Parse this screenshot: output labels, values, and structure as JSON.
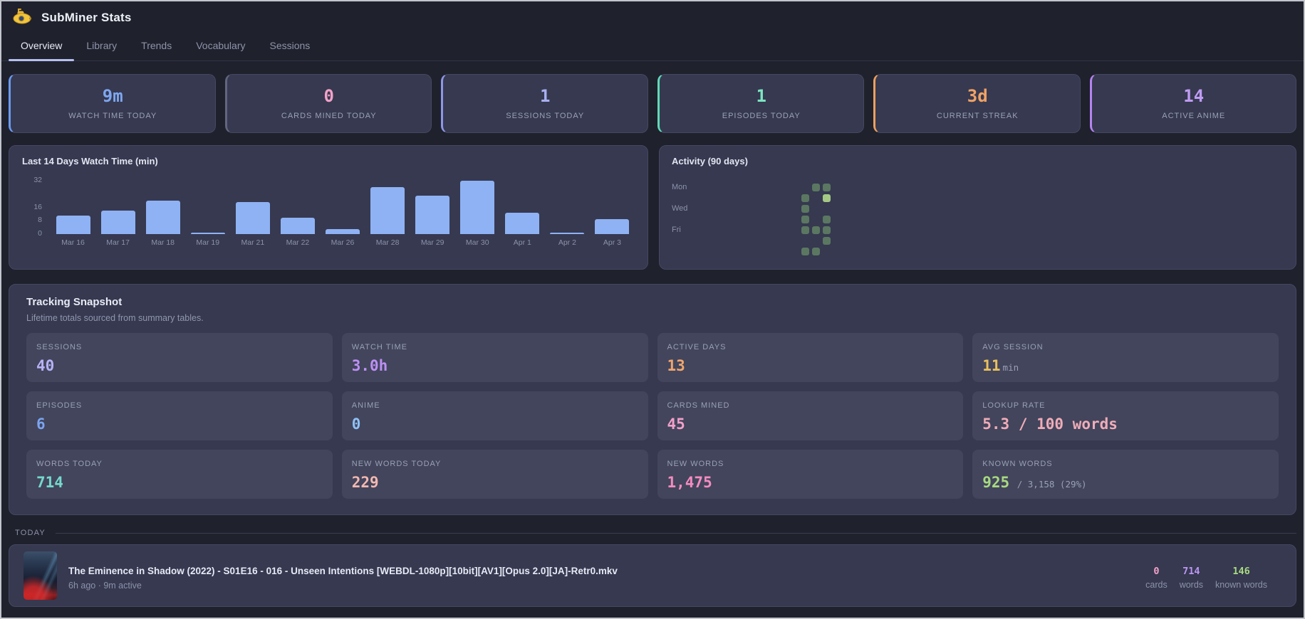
{
  "app": {
    "title": "SubMiner Stats"
  },
  "tabs": [
    {
      "label": "Overview",
      "active": true
    },
    {
      "label": "Library",
      "active": false
    },
    {
      "label": "Trends",
      "active": false
    },
    {
      "label": "Vocabulary",
      "active": false
    },
    {
      "label": "Sessions",
      "active": false
    }
  ],
  "stat_cards": [
    {
      "value": "9m",
      "label": "WATCH TIME TODAY",
      "color": "#7fa7f0",
      "border": "#6d9af0"
    },
    {
      "value": "0",
      "label": "CARDS MINED TODAY",
      "color": "#f2a2c8",
      "border": "#61657f"
    },
    {
      "value": "1",
      "label": "SESSIONS TODAY",
      "color": "#a9aff2",
      "border": "#8e96e8"
    },
    {
      "value": "1",
      "label": "EPISODES TODAY",
      "color": "#7de4c0",
      "border": "#62d9b8"
    },
    {
      "value": "3d",
      "label": "CURRENT STREAK",
      "color": "#f0a265",
      "border": "#eda05e"
    },
    {
      "value": "14",
      "label": "ACTIVE ANIME",
      "color": "#c09bf4",
      "border": "#b583f0"
    }
  ],
  "chart_data": [
    {
      "type": "bar",
      "title": "Last 14 Days Watch Time (min)",
      "categories": [
        "Mar 16",
        "Mar 17",
        "Mar 18",
        "Mar 19",
        "Mar 21",
        "Mar 22",
        "Mar 26",
        "Mar 28",
        "Mar 29",
        "Mar 30",
        "Apr 1",
        "Apr 2",
        "Apr 3"
      ],
      "values": [
        11,
        14,
        20,
        1,
        19,
        10,
        3,
        28,
        23,
        32,
        13,
        1,
        9
      ],
      "yticks": [
        0,
        8,
        16,
        32
      ],
      "ylim": [
        0,
        32
      ],
      "bar_color": "#8fb2f4"
    },
    {
      "type": "heatmap",
      "title": "Activity (90 days)",
      "day_labels": [
        {
          "text": "Mon",
          "row": 0
        },
        {
          "text": "Wed",
          "row": 2
        },
        {
          "text": "Fri",
          "row": 4
        }
      ],
      "columns": 13,
      "rows": 7,
      "cells": [
        {
          "r": 0,
          "c": 11,
          "level": 1
        },
        {
          "r": 0,
          "c": 12,
          "level": 1
        },
        {
          "r": 1,
          "c": 10,
          "level": 1
        },
        {
          "r": 1,
          "c": 12,
          "level": 2
        },
        {
          "r": 2,
          "c": 10,
          "level": 1
        },
        {
          "r": 3,
          "c": 10,
          "level": 1
        },
        {
          "r": 3,
          "c": 12,
          "level": 1
        },
        {
          "r": 4,
          "c": 10,
          "level": 1
        },
        {
          "r": 4,
          "c": 11,
          "level": 1
        },
        {
          "r": 4,
          "c": 12,
          "level": 1
        },
        {
          "r": 5,
          "c": 12,
          "level": 1
        },
        {
          "r": 6,
          "c": 10,
          "level": 1
        },
        {
          "r": 6,
          "c": 11,
          "level": 1
        }
      ],
      "colors": {
        "level1": "#5b7761",
        "level2": "#a5c985"
      }
    }
  ],
  "snapshot": {
    "title": "Tracking Snapshot",
    "subtitle": "Lifetime totals sourced from summary tables.",
    "tiles": [
      {
        "label": "SESSIONS",
        "value": "40",
        "suffix": "",
        "color": "#b6b2f6"
      },
      {
        "label": "WATCH TIME",
        "value": "3.0h",
        "suffix": "",
        "color": "#bd8ff4"
      },
      {
        "label": "ACTIVE DAYS",
        "value": "13",
        "suffix": "",
        "color": "#f0a66e"
      },
      {
        "label": "AVG SESSION",
        "value": "11",
        "suffix": "min",
        "color": "#e8c05e"
      },
      {
        "label": "EPISODES",
        "value": "6",
        "suffix": "",
        "color": "#7ba4f0"
      },
      {
        "label": "ANIME",
        "value": "0",
        "suffix": "",
        "color": "#8fc0f4"
      },
      {
        "label": "CARDS MINED",
        "value": "45",
        "suffix": "",
        "color": "#f2a0ca"
      },
      {
        "label": "LOOKUP RATE",
        "value": "5.3 / 100 words",
        "suffix": "",
        "color": "#f0acb8"
      },
      {
        "label": "WORDS TODAY",
        "value": "714",
        "suffix": "",
        "color": "#76d8cc"
      },
      {
        "label": "NEW WORDS TODAY",
        "value": "229",
        "suffix": "",
        "color": "#f4b8b0"
      },
      {
        "label": "NEW WORDS",
        "value": "1,475",
        "suffix": "",
        "color": "#f48cc0"
      },
      {
        "label": "KNOWN WORDS",
        "value": "925",
        "suffix": " / 3,158 (29%)",
        "color": "#a8da80"
      }
    ]
  },
  "today": {
    "heading": "TODAY",
    "item": {
      "title": "The Eminence in Shadow (2022) - S01E16 - 016 - Unseen Intentions [WEBDL-1080p][10bit][AV1][Opus 2.0][JA]-Retr0.mkv",
      "meta": "6h ago · 9m active",
      "stats": [
        {
          "value": "0",
          "label": "cards",
          "color": "#f2a2c8"
        },
        {
          "value": "714",
          "label": "words",
          "color": "#bd96f4"
        },
        {
          "value": "146",
          "label": "known words",
          "color": "#a8da80"
        }
      ]
    }
  }
}
